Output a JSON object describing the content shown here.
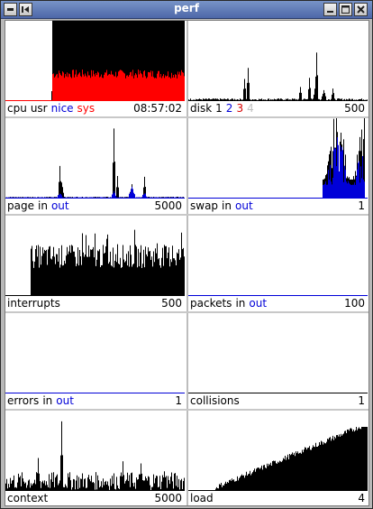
{
  "window": {
    "title": "perf",
    "buttons": {
      "menu": "window-menu",
      "pin": "pin",
      "minimize": "minimize",
      "maximize": "maximize",
      "close": "close"
    }
  },
  "colors": {
    "black": "#000000",
    "red": "#ff0000",
    "blue": "#0000d8",
    "disk1": "#000000",
    "disk2": "#0000d8",
    "disk3": "#d80000",
    "disk4": "#c0c0c0"
  },
  "panels": {
    "cpu": {
      "words": [
        "cpu",
        "usr",
        "nice",
        "sys"
      ],
      "value": "08:57:02"
    },
    "disk": {
      "words": [
        "disk",
        "1",
        "2",
        "3",
        "4"
      ],
      "value": "500"
    },
    "page": {
      "words": [
        "page",
        "in",
        "out"
      ],
      "value": "5000"
    },
    "swap": {
      "words": [
        "swap",
        "in",
        "out"
      ],
      "value": "1"
    },
    "interrupts": {
      "words": [
        "interrupts"
      ],
      "value": "500"
    },
    "packets": {
      "words": [
        "packets",
        "in",
        "out"
      ],
      "value": "100"
    },
    "errors": {
      "words": [
        "errors",
        "in",
        "out"
      ],
      "value": "1"
    },
    "collisions": {
      "words": [
        "collisions"
      ],
      "value": "1"
    },
    "context": {
      "words": [
        "context"
      ],
      "value": "5000"
    },
    "load": {
      "words": [
        "load"
      ],
      "value": "4"
    }
  }
}
